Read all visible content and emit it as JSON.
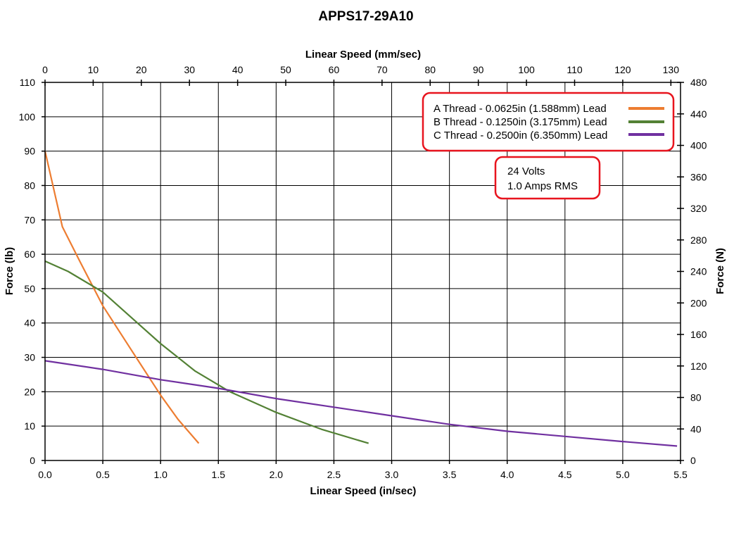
{
  "chart_data": {
    "type": "line",
    "title": "APPS17-29A10",
    "xlabel": "Linear Speed (in/sec)",
    "x2label": "Linear Speed (mm/sec)",
    "ylabel": "Force (lb)",
    "y2label": "Force (N)",
    "xlim": [
      0,
      5.5
    ],
    "ylim": [
      0,
      110
    ],
    "x2lim": [
      0,
      132
    ],
    "y2lim": [
      0,
      480
    ],
    "x_ticks": [
      "0.0",
      "0.5",
      "1.0",
      "1.5",
      "2.0",
      "2.5",
      "3.0",
      "3.5",
      "4.0",
      "4.5",
      "5.0",
      "5.5"
    ],
    "y_ticks": [
      "0",
      "10",
      "20",
      "30",
      "40",
      "50",
      "60",
      "70",
      "80",
      "90",
      "100",
      "110"
    ],
    "x2_ticks": [
      "0",
      "10",
      "20",
      "30",
      "40",
      "50",
      "60",
      "70",
      "80",
      "90",
      "100",
      "110",
      "120",
      "130"
    ],
    "y2_ticks": [
      "0",
      "40",
      "80",
      "120",
      "160",
      "200",
      "240",
      "280",
      "320",
      "360",
      "400",
      "440",
      "480"
    ],
    "grid": true,
    "legend_position": "top-right",
    "series": [
      {
        "name": "A Thread - 0.0625in (1.588mm) Lead",
        "color": "#ED7D31",
        "points": [
          [
            0,
            90
          ],
          [
            0.15,
            68
          ],
          [
            0.3,
            58
          ],
          [
            0.5,
            45
          ],
          [
            0.75,
            32
          ],
          [
            1.0,
            19
          ],
          [
            1.15,
            12
          ],
          [
            1.33,
            5
          ]
        ]
      },
      {
        "name": "B Thread - 0.1250in (3.175mm) Lead",
        "color": "#538135",
        "points": [
          [
            0,
            58
          ],
          [
            0.2,
            55
          ],
          [
            0.5,
            49
          ],
          [
            0.8,
            40
          ],
          [
            1.0,
            34
          ],
          [
            1.3,
            26
          ],
          [
            1.6,
            20
          ],
          [
            2.0,
            14
          ],
          [
            2.4,
            9
          ],
          [
            2.8,
            5
          ]
        ]
      },
      {
        "name": "C Thread - 0.2500in (6.350mm) Lead",
        "color": "#7030A0",
        "points": [
          [
            0,
            29
          ],
          [
            0.5,
            26.5
          ],
          [
            1.0,
            23.5
          ],
          [
            1.5,
            21
          ],
          [
            2.0,
            18
          ],
          [
            2.5,
            15.5
          ],
          [
            3.0,
            13
          ],
          [
            3.5,
            10.5
          ],
          [
            4.0,
            8.5
          ],
          [
            4.5,
            7
          ],
          [
            5.0,
            5.5
          ],
          [
            5.47,
            4.2
          ]
        ]
      }
    ],
    "annotation_lines": [
      "24 Volts",
      "1.0 Amps RMS"
    ]
  },
  "legend_border_color": "#E8141E"
}
